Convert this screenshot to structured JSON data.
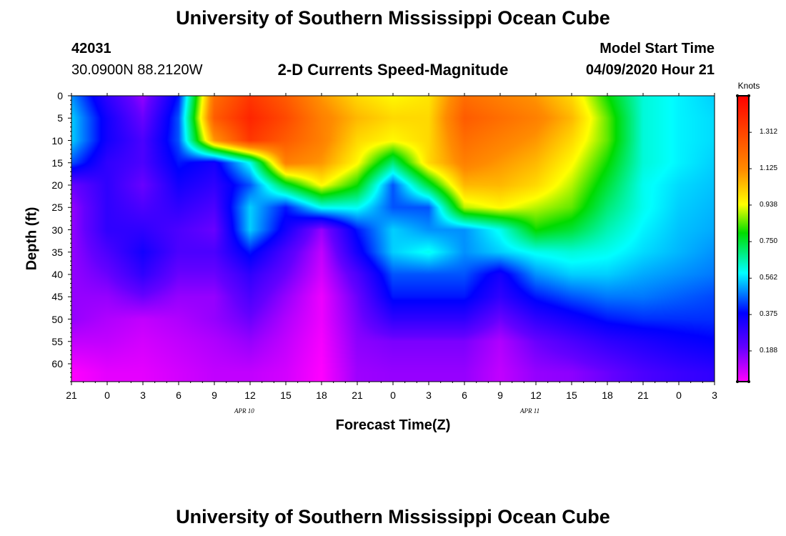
{
  "page_title": "University of Southern Mississippi Ocean Cube",
  "footer_title": "University of Southern Mississippi Ocean Cube",
  "station": {
    "id": "42031",
    "coords": "30.0900N 88.2120W"
  },
  "model": {
    "label": "Model Start Time",
    "time": "04/09/2020 Hour 21"
  },
  "chart_data": {
    "type": "heatmap",
    "title": "2-D Currents Speed-Magnitude",
    "xlabel": "Forecast Time(Z)",
    "ylabel": "Depth (ft)",
    "y_ticks": [
      "0",
      "5",
      "10",
      "15",
      "20",
      "25",
      "30",
      "35",
      "40",
      "45",
      "50",
      "55",
      "60"
    ],
    "ylim": [
      0,
      64
    ],
    "x_ticks": [
      "21",
      "0",
      "3",
      "6",
      "9",
      "12",
      "15",
      "18",
      "21",
      "0",
      "3",
      "6",
      "9",
      "12",
      "15",
      "18",
      "21",
      "0",
      "3"
    ],
    "x_range_hours": [
      0,
      54
    ],
    "date_labels": [
      {
        "text": "APR 10",
        "hour": 15
      },
      {
        "text": "APR 11",
        "hour": 39
      }
    ],
    "colorbar": {
      "label": "Knots",
      "ticks": [
        "1.312",
        "1.125",
        "0.938",
        "0.750",
        "0.562",
        "0.375",
        "0.188"
      ],
      "range": [
        0.03,
        1.5
      ]
    },
    "estimated_speed_knots": {
      "hours": [
        0,
        3,
        6,
        9,
        12,
        15,
        18,
        21,
        24,
        27,
        30,
        33,
        36,
        39,
        42,
        45,
        48,
        51,
        54
      ],
      "depths_ft": [
        0,
        5,
        10,
        15,
        20,
        25,
        30,
        35,
        40,
        45,
        50,
        55,
        62
      ],
      "values": [
        [
          0.5,
          0.3,
          0.15,
          0.4,
          1.2,
          1.35,
          1.25,
          1.1,
          1.0,
          0.95,
          0.98,
          1.2,
          1.15,
          1.1,
          1.0,
          0.8,
          0.62,
          0.58,
          0.55
        ],
        [
          0.55,
          0.35,
          0.2,
          0.45,
          1.25,
          1.4,
          1.3,
          1.15,
          1.05,
          1.0,
          1.0,
          1.25,
          1.2,
          1.15,
          1.05,
          0.85,
          0.62,
          0.58,
          0.56
        ],
        [
          0.55,
          0.35,
          0.25,
          0.45,
          1.1,
          1.35,
          1.25,
          1.15,
          1.0,
          0.95,
          1.0,
          1.2,
          1.15,
          1.1,
          1.0,
          0.85,
          0.62,
          0.58,
          0.56
        ],
        [
          0.45,
          0.3,
          0.25,
          0.4,
          0.35,
          0.6,
          1.15,
          1.1,
          0.95,
          0.7,
          1.0,
          1.15,
          1.1,
          1.05,
          0.95,
          0.8,
          0.62,
          0.58,
          0.55
        ],
        [
          0.2,
          0.3,
          0.2,
          0.35,
          0.3,
          0.45,
          0.75,
          0.95,
          0.8,
          0.45,
          0.75,
          1.05,
          1.05,
          1.0,
          0.9,
          0.75,
          0.6,
          0.56,
          0.54
        ],
        [
          0.15,
          0.3,
          0.25,
          0.3,
          0.25,
          0.55,
          0.4,
          0.6,
          0.6,
          0.45,
          0.45,
          0.9,
          0.95,
          0.9,
          0.85,
          0.7,
          0.6,
          0.55,
          0.53
        ],
        [
          0.15,
          0.3,
          0.3,
          0.25,
          0.2,
          0.55,
          0.35,
          0.15,
          0.4,
          0.55,
          0.5,
          0.5,
          0.6,
          0.8,
          0.75,
          0.65,
          0.58,
          0.54,
          0.52
        ],
        [
          0.15,
          0.25,
          0.35,
          0.25,
          0.25,
          0.4,
          0.25,
          0.1,
          0.35,
          0.55,
          0.6,
          0.5,
          0.55,
          0.6,
          0.62,
          0.6,
          0.56,
          0.53,
          0.5
        ],
        [
          0.15,
          0.2,
          0.3,
          0.2,
          0.2,
          0.3,
          0.2,
          0.08,
          0.25,
          0.45,
          0.45,
          0.45,
          0.35,
          0.5,
          0.55,
          0.55,
          0.52,
          0.5,
          0.48
        ],
        [
          0.15,
          0.15,
          0.2,
          0.15,
          0.15,
          0.25,
          0.15,
          0.05,
          0.2,
          0.4,
          0.4,
          0.4,
          0.3,
          0.4,
          0.45,
          0.48,
          0.48,
          0.46,
          0.44
        ],
        [
          0.15,
          0.12,
          0.1,
          0.12,
          0.15,
          0.2,
          0.12,
          0.05,
          0.18,
          0.3,
          0.3,
          0.3,
          0.2,
          0.3,
          0.35,
          0.4,
          0.42,
          0.42,
          0.42
        ],
        [
          0.1,
          0.1,
          0.08,
          0.1,
          0.12,
          0.15,
          0.1,
          0.04,
          0.16,
          0.18,
          0.18,
          0.18,
          0.12,
          0.2,
          0.25,
          0.3,
          0.33,
          0.36,
          0.38
        ],
        [
          0.03,
          0.06,
          0.06,
          0.08,
          0.1,
          0.1,
          0.08,
          0.03,
          0.14,
          0.15,
          0.15,
          0.15,
          0.1,
          0.15,
          0.16,
          0.2,
          0.25,
          0.28,
          0.3
        ]
      ]
    }
  }
}
